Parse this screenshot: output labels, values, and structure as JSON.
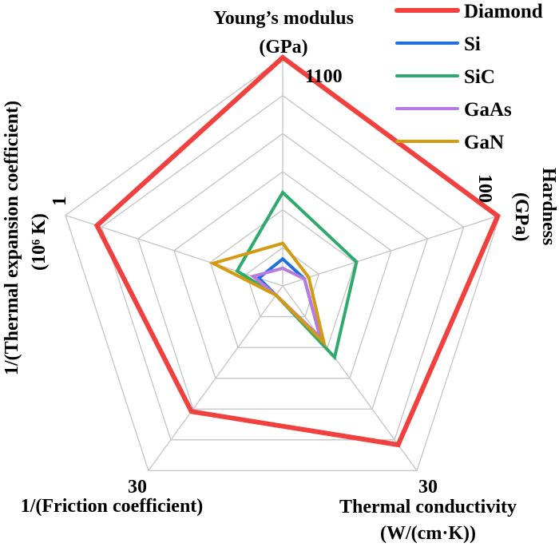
{
  "chart_data": {
    "type": "radar",
    "title": "",
    "levels": 6,
    "grid": true,
    "legend_position": "top-right",
    "axes": [
      {
        "label_lines": [
          "Young’s modulus",
          "(GPa)"
        ],
        "max": 1100,
        "max_label": "1100"
      },
      {
        "label_lines": [
          "Hardness",
          "(GPa)"
        ],
        "max": 100,
        "max_label": "100"
      },
      {
        "label_lines": [
          "Thermal conductivity",
          "(W/(cm·K))"
        ],
        "max": 30,
        "max_label": "30"
      },
      {
        "label_lines": [
          "1/(Friction coefficient)"
        ],
        "max": 30,
        "max_label": "30"
      },
      {
        "label_lines": [
          "1/(Thermal expansion coefficient)",
          "(10⁶ K)"
        ],
        "max": 1,
        "max_label": "1"
      }
    ],
    "series": [
      {
        "name": "Diamond",
        "color": "#f0413f",
        "values": [
          1100,
          99,
          25.8,
          20.4,
          0.855
        ]
      },
      {
        "name": "Si",
        "color": "#1f6fe0",
        "values": [
          130,
          10,
          8.4,
          1.5,
          0.11
        ]
      },
      {
        "name": "SiC",
        "color": "#2eaa6c",
        "values": [
          450,
          34,
          11.6,
          1.5,
          0.21
        ]
      },
      {
        "name": "GaAs",
        "color": "#b77be0",
        "values": [
          85,
          10,
          8.4,
          1.5,
          0.136
        ]
      },
      {
        "name": "GaN",
        "color": "#d49a12",
        "values": [
          205,
          12,
          9.2,
          1.5,
          0.32
        ]
      }
    ]
  }
}
